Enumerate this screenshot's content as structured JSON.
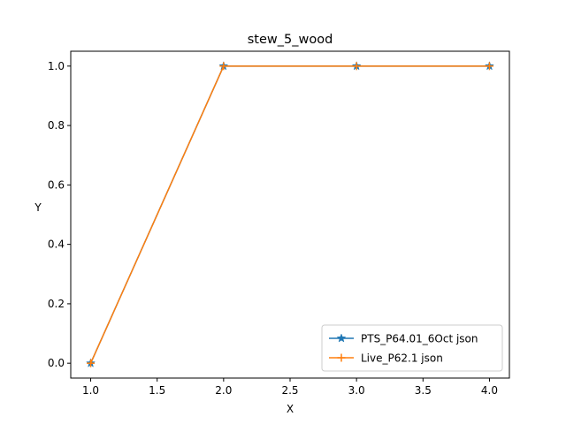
{
  "chart_data": {
    "type": "line",
    "title": "stew_5_wood",
    "xlabel": "X",
    "ylabel": "Y",
    "xlim": [
      0.85,
      4.15
    ],
    "ylim": [
      -0.05,
      1.05
    ],
    "xticks": [
      1.0,
      1.5,
      2.0,
      2.5,
      3.0,
      3.5,
      4.0
    ],
    "xtick_labels": [
      "1.0",
      "1.5",
      "2.0",
      "2.5",
      "3.0",
      "3.5",
      "4.0"
    ],
    "yticks": [
      0.0,
      0.2,
      0.4,
      0.6,
      0.8,
      1.0
    ],
    "ytick_labels": [
      "0.0",
      "0.2",
      "0.4",
      "0.6",
      "0.8",
      "1.0"
    ],
    "grid": false,
    "legend_position": "bottom-right",
    "series": [
      {
        "name": "PTS_P64.01_6Oct json",
        "color": "#1f77b4",
        "marker": "star",
        "x": [
          1,
          2,
          3,
          4
        ],
        "y": [
          0,
          1,
          1,
          1
        ]
      },
      {
        "name": "Live_P62.1 json",
        "color": "#ff7f0e",
        "marker": "plus",
        "x": [
          1,
          2,
          3,
          4
        ],
        "y": [
          0,
          1,
          1,
          1
        ]
      }
    ]
  }
}
